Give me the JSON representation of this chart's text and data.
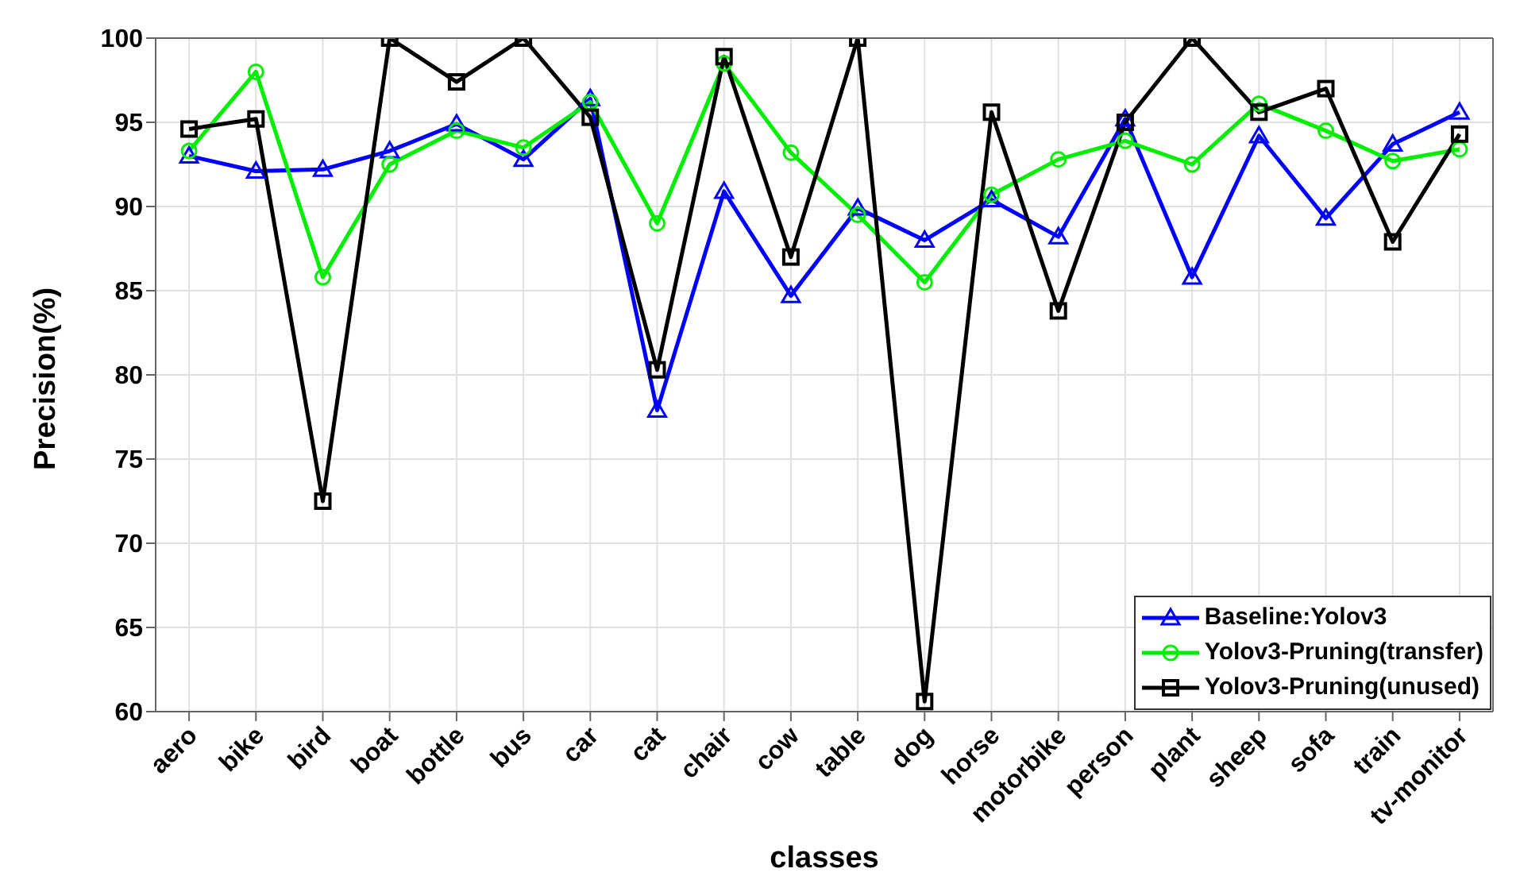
{
  "chart_data": {
    "type": "line",
    "xlabel": "classes",
    "ylabel": "Precision(%)",
    "categories": [
      "aero",
      "bike",
      "bird",
      "boat",
      "bottle",
      "bus",
      "car",
      "cat",
      "chair",
      "cow",
      "table",
      "dog",
      "horse",
      "motorbike",
      "person",
      "plant",
      "sheep",
      "sofa",
      "train",
      "tv-monitor"
    ],
    "series": [
      {
        "name": "Baseline:Yolov3",
        "color": "#0000ff",
        "marker": "triangle",
        "values": [
          93.0,
          92.1,
          92.2,
          93.3,
          94.9,
          92.8,
          96.4,
          77.9,
          90.9,
          84.7,
          89.9,
          88.0,
          90.4,
          88.2,
          95.2,
          85.8,
          94.2,
          89.3,
          93.7,
          95.6
        ]
      },
      {
        "name": "Yolov3-Pruning(transfer)",
        "color": "#00ee00",
        "marker": "circle",
        "values": [
          93.3,
          98.0,
          85.8,
          92.5,
          94.5,
          93.5,
          96.2,
          89.0,
          98.5,
          93.2,
          89.5,
          85.5,
          90.7,
          92.8,
          93.9,
          92.5,
          96.1,
          94.5,
          92.7,
          93.4
        ]
      },
      {
        "name": "Yolov3-Pruning(unused)",
        "color": "#000000",
        "marker": "square",
        "values": [
          94.6,
          95.2,
          72.5,
          100,
          97.4,
          100,
          95.3,
          80.3,
          98.9,
          87.0,
          100,
          60.6,
          95.6,
          83.8,
          95.0,
          100,
          95.6,
          97.0,
          87.9,
          94.3
        ]
      }
    ],
    "ylim": [
      60,
      100
    ],
    "yticks": [
      60,
      65,
      70,
      75,
      80,
      85,
      90,
      95,
      100
    ],
    "grid": true,
    "legend": "bottom right",
    "line_style": "solid"
  }
}
